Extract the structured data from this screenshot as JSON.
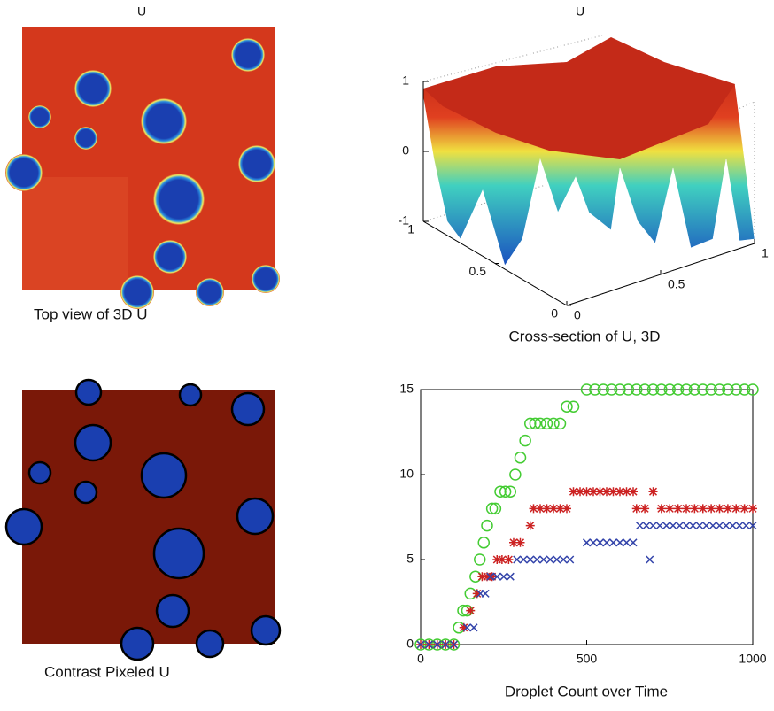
{
  "chart_data": [
    {
      "type": "image",
      "title": "U",
      "caption": "Top view of 3D U"
    },
    {
      "type": "surface",
      "title": "U",
      "caption": "Cross-section of U, 3D",
      "zticks": [
        -1,
        0,
        1
      ],
      "xticks": [
        0,
        0.5,
        1
      ],
      "yticks": [
        0,
        0.5,
        1
      ]
    },
    {
      "type": "image",
      "caption": "Contrast Pixeled U"
    },
    {
      "type": "scatter",
      "caption": "Droplet Count over Time",
      "xlim": [
        0,
        1000
      ],
      "ylim": [
        0,
        15
      ],
      "xticks": [
        0,
        500,
        1000
      ],
      "yticks": [
        0,
        5,
        10,
        15
      ],
      "series": [
        {
          "color": "#44cc33",
          "marker": "circle",
          "x": [
            0,
            25,
            50,
            75,
            100,
            115,
            128,
            140,
            150,
            165,
            178,
            190,
            200,
            215,
            225,
            240,
            255,
            270,
            285,
            300,
            315,
            330,
            345,
            360,
            380,
            400,
            420,
            440,
            460,
            500,
            525,
            550,
            575,
            600,
            625,
            650,
            675,
            700,
            725,
            750,
            775,
            800,
            825,
            850,
            875,
            900,
            925,
            950,
            975,
            1000
          ],
          "values": [
            0,
            0,
            0,
            0,
            0,
            1,
            2,
            2,
            3,
            4,
            5,
            6,
            7,
            8,
            8,
            9,
            9,
            9,
            10,
            11,
            12,
            13,
            13,
            13,
            13,
            13,
            13,
            14,
            14,
            15,
            15,
            15,
            15,
            15,
            15,
            15,
            15,
            15,
            15,
            15,
            15,
            15,
            15,
            15,
            15,
            15,
            15,
            15,
            15,
            15
          ]
        },
        {
          "color": "#cc2222",
          "marker": "star",
          "x": [
            0,
            25,
            50,
            75,
            100,
            130,
            150,
            170,
            185,
            200,
            215,
            230,
            245,
            265,
            280,
            300,
            330,
            340,
            360,
            380,
            400,
            420,
            440,
            460,
            480,
            500,
            520,
            540,
            560,
            580,
            600,
            620,
            640,
            700,
            650,
            675,
            725,
            750,
            775,
            800,
            825,
            850,
            875,
            900,
            925,
            950,
            975,
            1000
          ],
          "values": [
            0,
            0,
            0,
            0,
            0,
            1,
            2,
            3,
            4,
            4,
            4,
            5,
            5,
            5,
            6,
            6,
            7,
            8,
            8,
            8,
            8,
            8,
            8,
            9,
            9,
            9,
            9,
            9,
            9,
            9,
            9,
            9,
            9,
            9,
            8,
            8,
            8,
            8,
            8,
            8,
            8,
            8,
            8,
            8,
            8,
            8,
            8,
            8
          ]
        },
        {
          "color": "#3344aa",
          "marker": "x",
          "x": [
            0,
            25,
            50,
            75,
            100,
            140,
            160,
            180,
            195,
            210,
            230,
            250,
            270,
            290,
            310,
            330,
            350,
            370,
            390,
            410,
            430,
            450,
            500,
            520,
            540,
            560,
            580,
            600,
            620,
            640,
            690,
            660,
            680,
            700,
            720,
            740,
            760,
            780,
            800,
            820,
            840,
            860,
            880,
            900,
            920,
            940,
            960,
            980,
            1000
          ],
          "values": [
            0,
            0,
            0,
            0,
            0,
            1,
            1,
            3,
            3,
            4,
            4,
            4,
            4,
            5,
            5,
            5,
            5,
            5,
            5,
            5,
            5,
            5,
            6,
            6,
            6,
            6,
            6,
            6,
            6,
            6,
            5,
            7,
            7,
            7,
            7,
            7,
            7,
            7,
            7,
            7,
            7,
            7,
            7,
            7,
            7,
            7,
            7,
            7,
            7
          ]
        }
      ]
    }
  ]
}
